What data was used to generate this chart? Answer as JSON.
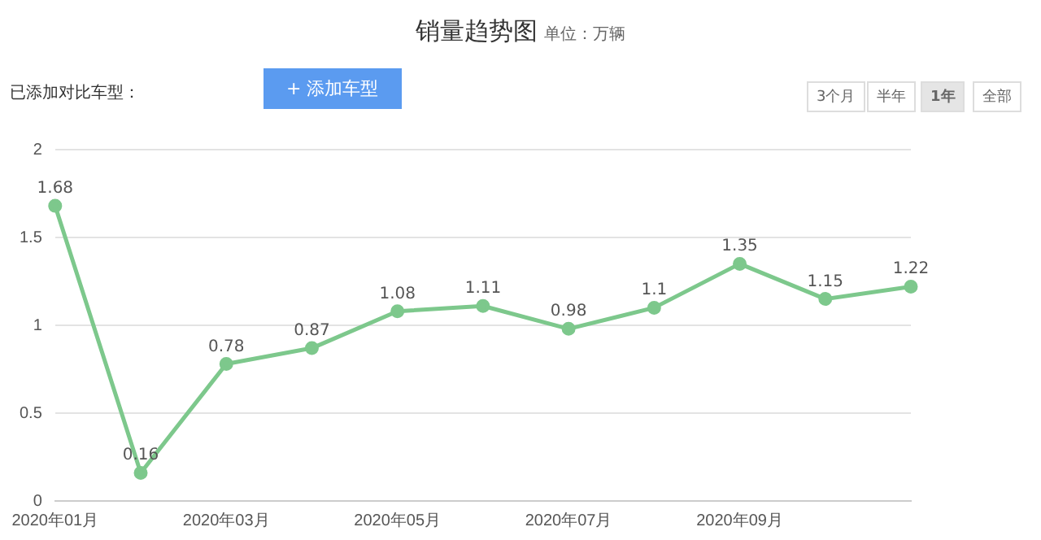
{
  "chart_data": {
    "type": "line",
    "title": "销量趋势图",
    "subtitle": "单位：万辆",
    "categories": [
      "2020年01月",
      null,
      "2020年03月",
      null,
      "2020年05月",
      null,
      "2020年07月",
      null,
      "2020年09月",
      null,
      null
    ],
    "series": [
      {
        "color": "#7dc88c",
        "values": [
          1.68,
          0.16,
          0.78,
          0.87,
          1.08,
          1.11,
          0.98,
          1.1,
          1.35,
          1.15,
          1.22
        ]
      }
    ],
    "ylim": [
      0,
      2
    ],
    "yticks": [
      0,
      0.5,
      1,
      1.5,
      2
    ],
    "grid": "y",
    "marker": "circle",
    "data_labels": true,
    "legend": false,
    "annotations": [
      "已添加对比车型：",
      "+ 添加车型",
      "3个月",
      "半年",
      "1年",
      "全部"
    ]
  }
}
